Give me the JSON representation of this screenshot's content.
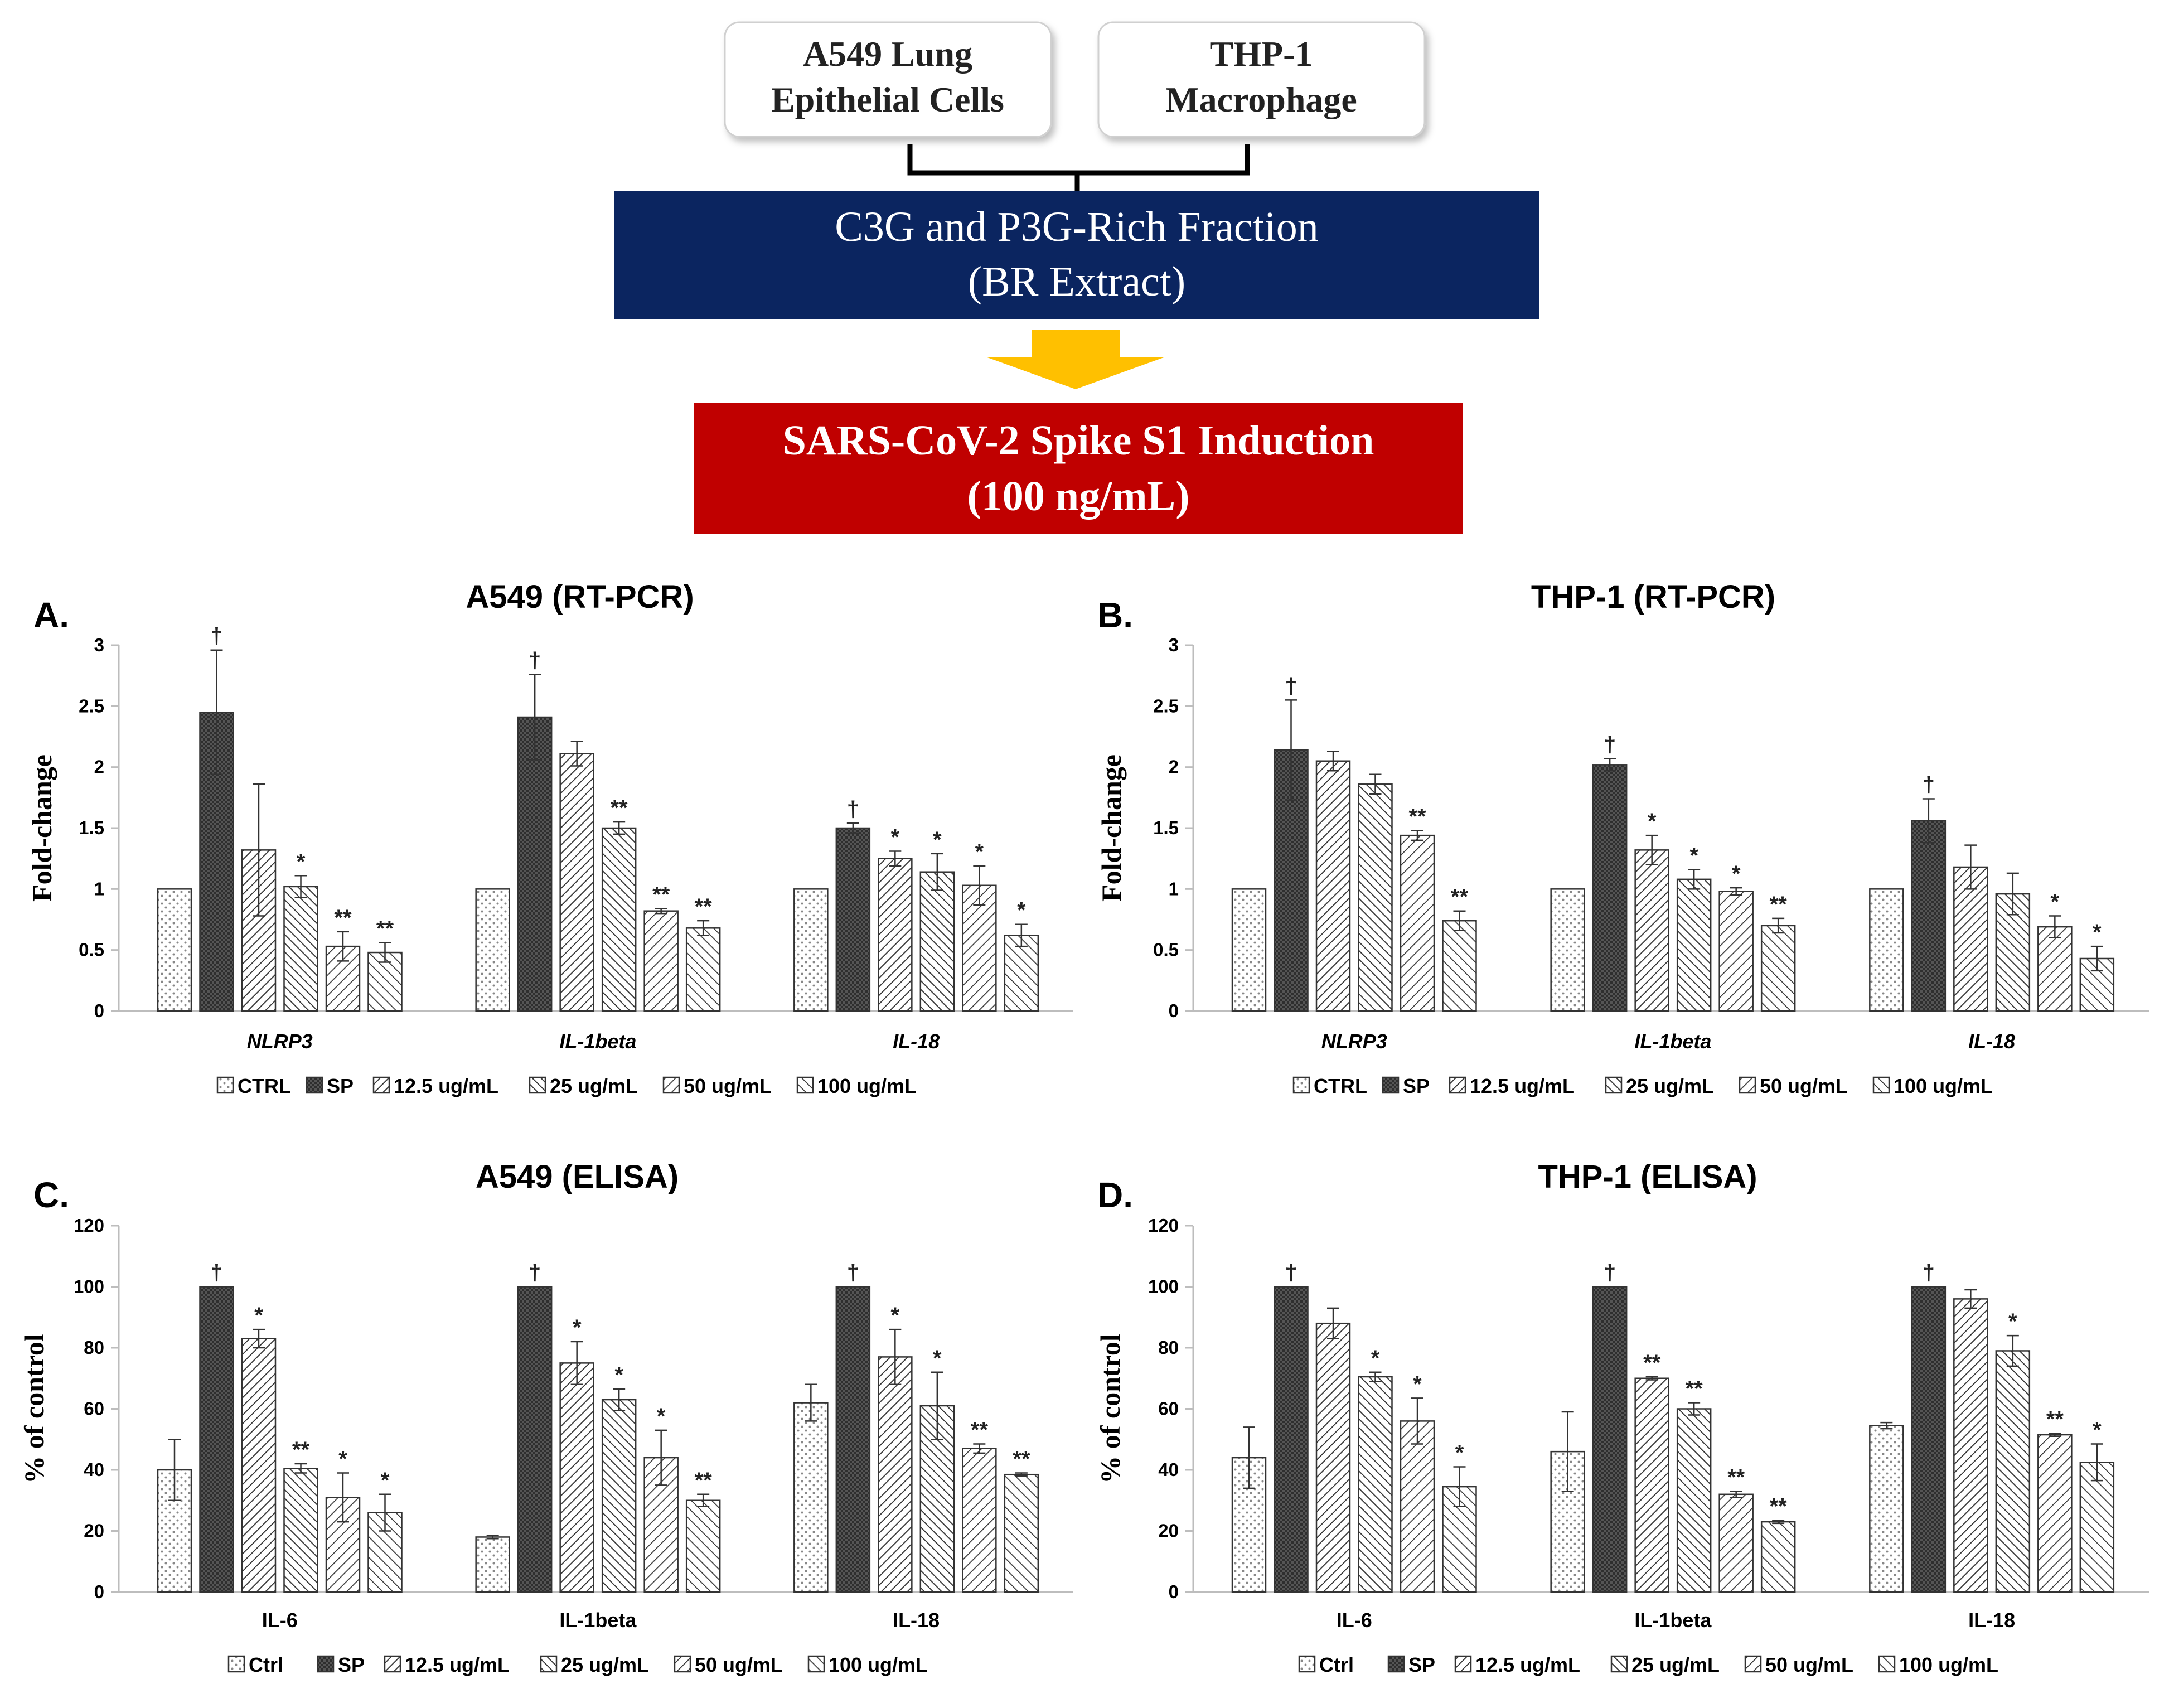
{
  "schematic": {
    "cell_box_1": [
      "A549 Lung",
      "Epithelial Cells"
    ],
    "cell_box_2": [
      "THP-1",
      "Macrophage"
    ],
    "extract_box": [
      "C3G and P3G-Rich Fraction",
      "(BR Extract)"
    ],
    "induction_box": [
      "SARS-CoV-2 Spike S1 Induction",
      "(100 ng/mL)"
    ],
    "colors": {
      "extract_box": "#0b2560",
      "induction_box": "#c00000",
      "arrow": "#ffc000"
    }
  },
  "chart_data": [
    {
      "panel": "A.",
      "type": "bar",
      "title": "A549 (RT-PCR)",
      "ylabel": "Fold-change",
      "xlabel": "",
      "ylim": [
        0,
        3
      ],
      "yticks": [
        "0",
        "0.5",
        "1",
        "1.5",
        "2",
        "2.5",
        "3"
      ],
      "categories": [
        "NLRP3",
        "IL-1beta",
        "IL-18"
      ],
      "category_italic": true,
      "series": [
        {
          "name": "CTRL",
          "pattern": "dots",
          "values": [
            1,
            1,
            1
          ],
          "errors": [
            0,
            0,
            0
          ],
          "marks": [
            "",
            "",
            ""
          ]
        },
        {
          "name": "SP",
          "pattern": "dark",
          "values": [
            2.45,
            2.41,
            1.5
          ],
          "errors": [
            0.51,
            0.35,
            0.04
          ],
          "marks": [
            "†",
            "†",
            "†"
          ]
        },
        {
          "name": "12.5 ug/mL",
          "pattern": "hatch1",
          "values": [
            1.32,
            2.11,
            1.25
          ],
          "errors": [
            0.54,
            0.1,
            0.06
          ],
          "marks": [
            "",
            "",
            "*"
          ]
        },
        {
          "name": "25 ug/mL",
          "pattern": "hatch2",
          "values": [
            1.02,
            1.5,
            1.14
          ],
          "errors": [
            0.09,
            0.05,
            0.15
          ],
          "marks": [
            "*",
            "**",
            "*"
          ]
        },
        {
          "name": "50 ug/mL",
          "pattern": "hatch3",
          "values": [
            0.53,
            0.82,
            1.03
          ],
          "errors": [
            0.12,
            0.02,
            0.16
          ],
          "marks": [
            "**",
            "**",
            "*"
          ]
        },
        {
          "name": "100 ug/mL",
          "pattern": "hatch4",
          "values": [
            0.48,
            0.68,
            0.62
          ],
          "errors": [
            0.08,
            0.06,
            0.09
          ],
          "marks": [
            "**",
            "**",
            "*"
          ]
        }
      ]
    },
    {
      "panel": "B.",
      "type": "bar",
      "title": "THP-1 (RT-PCR)",
      "ylabel": "Fold-change",
      "xlabel": "",
      "ylim": [
        0,
        3
      ],
      "yticks": [
        "0",
        "0.5",
        "1",
        "1.5",
        "2",
        "2.5",
        "3"
      ],
      "categories": [
        "NLRP3",
        "IL-1beta",
        "IL-18"
      ],
      "category_italic": true,
      "series": [
        {
          "name": "CTRL",
          "pattern": "dots",
          "values": [
            1,
            1,
            1
          ],
          "errors": [
            0,
            0,
            0
          ],
          "marks": [
            "",
            "",
            ""
          ]
        },
        {
          "name": "SP",
          "pattern": "dark",
          "values": [
            2.14,
            2.02,
            1.56
          ],
          "errors": [
            0.41,
            0.05,
            0.18
          ],
          "marks": [
            "†",
            "†",
            "†"
          ]
        },
        {
          "name": "12.5 ug/mL",
          "pattern": "hatch1",
          "values": [
            2.05,
            1.32,
            1.18
          ],
          "errors": [
            0.08,
            0.12,
            0.18
          ],
          "marks": [
            "",
            "*",
            ""
          ]
        },
        {
          "name": "25 ug/mL",
          "pattern": "hatch2",
          "values": [
            1.86,
            1.08,
            0.96
          ],
          "errors": [
            0.08,
            0.08,
            0.17
          ],
          "marks": [
            "",
            "*",
            ""
          ]
        },
        {
          "name": "50 ug/mL",
          "pattern": "hatch3",
          "values": [
            1.44,
            0.98,
            0.69
          ],
          "errors": [
            0.04,
            0.03,
            0.09
          ],
          "marks": [
            "**",
            "*",
            "*"
          ]
        },
        {
          "name": "100 ug/mL",
          "pattern": "hatch4",
          "values": [
            0.74,
            0.7,
            0.43
          ],
          "errors": [
            0.08,
            0.06,
            0.1
          ],
          "marks": [
            "**",
            "**",
            "*"
          ]
        }
      ]
    },
    {
      "panel": "C.",
      "type": "bar",
      "title": "A549 (ELISA)",
      "ylabel": "% of control",
      "xlabel": "",
      "ylim": [
        0,
        120
      ],
      "yticks": [
        "0",
        "20",
        "40",
        "60",
        "80",
        "100",
        "120"
      ],
      "categories": [
        "IL-6",
        "IL-1beta",
        "IL-18"
      ],
      "category_italic": false,
      "series": [
        {
          "name": "Ctrl",
          "pattern": "dots",
          "values": [
            40,
            18,
            62
          ],
          "errors": [
            10,
            0.5,
            6
          ],
          "marks": [
            "",
            "",
            ""
          ]
        },
        {
          "name": "SP",
          "pattern": "dark",
          "values": [
            100,
            100,
            100
          ],
          "errors": [
            0,
            0,
            0
          ],
          "marks": [
            "†",
            "†",
            "†"
          ]
        },
        {
          "name": "12.5 ug/mL",
          "pattern": "hatch1",
          "values": [
            83,
            75,
            77
          ],
          "errors": [
            3,
            7,
            9
          ],
          "marks": [
            "*",
            "*",
            "*"
          ]
        },
        {
          "name": "25 ug/mL",
          "pattern": "hatch2",
          "values": [
            40.5,
            63,
            61
          ],
          "errors": [
            1.5,
            3.5,
            11
          ],
          "marks": [
            "**",
            "*",
            "*"
          ]
        },
        {
          "name": "50 ug/mL",
          "pattern": "hatch3",
          "values": [
            31,
            44,
            47
          ],
          "errors": [
            8,
            9,
            1.5
          ],
          "marks": [
            "*",
            "*",
            "**"
          ]
        },
        {
          "name": "100 ug/mL",
          "pattern": "hatch4",
          "values": [
            26,
            30,
            38.5
          ],
          "errors": [
            6,
            2,
            0.5
          ],
          "marks": [
            "*",
            "**",
            "**"
          ]
        }
      ]
    },
    {
      "panel": "D.",
      "type": "bar",
      "title": "THP-1 (ELISA)",
      "ylabel": "% of control",
      "xlabel": "",
      "ylim": [
        0,
        120
      ],
      "yticks": [
        "0",
        "20",
        "40",
        "60",
        "80",
        "100",
        "120"
      ],
      "categories": [
        "IL-6",
        "IL-1beta",
        "IL-18"
      ],
      "category_italic": false,
      "series": [
        {
          "name": "Ctrl",
          "pattern": "dots",
          "values": [
            44,
            46,
            54.5
          ],
          "errors": [
            10,
            13,
            1
          ],
          "marks": [
            "",
            "",
            ""
          ]
        },
        {
          "name": "SP",
          "pattern": "dark",
          "values": [
            100,
            100,
            100
          ],
          "errors": [
            0,
            0,
            0
          ],
          "marks": [
            "†",
            "†",
            "†"
          ]
        },
        {
          "name": "12.5 ug/mL",
          "pattern": "hatch1",
          "values": [
            88,
            70,
            96
          ],
          "errors": [
            5,
            0.5,
            3
          ],
          "marks": [
            "",
            "**",
            ""
          ]
        },
        {
          "name": "25 ug/mL",
          "pattern": "hatch2",
          "values": [
            70.5,
            60,
            79
          ],
          "errors": [
            1.5,
            2,
            5
          ],
          "marks": [
            "*",
            "**",
            "*"
          ]
        },
        {
          "name": "50 ug/mL",
          "pattern": "hatch3",
          "values": [
            56,
            32,
            51.5
          ],
          "errors": [
            7.5,
            1,
            0.5
          ],
          "marks": [
            "*",
            "**",
            "**"
          ]
        },
        {
          "name": "100 ug/mL",
          "pattern": "hatch4",
          "values": [
            34.5,
            23,
            42.5
          ],
          "errors": [
            6.5,
            0.5,
            6
          ],
          "marks": [
            "*",
            "**",
            "*"
          ]
        }
      ]
    }
  ]
}
